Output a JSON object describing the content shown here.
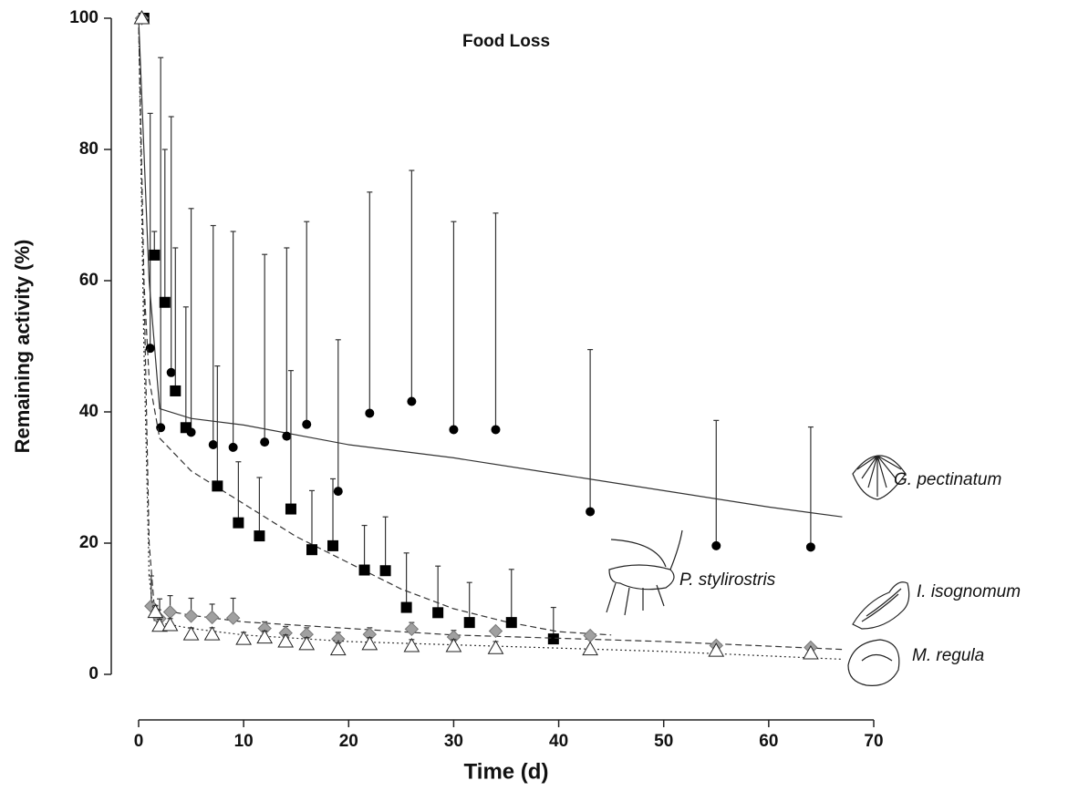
{
  "chart_data": {
    "type": "scatter",
    "title": "Food Loss",
    "xlabel": "Time (d)",
    "ylabel": "Remaining activity (%)",
    "xlim": [
      0,
      70
    ],
    "ylim": [
      0,
      100
    ],
    "xticks": [
      0,
      10,
      20,
      30,
      40,
      50,
      60,
      70
    ],
    "yticks": [
      0,
      20,
      40,
      60,
      80,
      100
    ],
    "series": [
      {
        "name": "G. pectinatum",
        "marker": "circle",
        "color": "#000000",
        "x": [
          0.3,
          1.1,
          2.1,
          3.1,
          5.0,
          7.1,
          9.0,
          12.0,
          14.1,
          16.0,
          19.0,
          22.0,
          26.0,
          30.0,
          34.0,
          43.0,
          55.0,
          64.0
        ],
        "values": [
          100,
          49.7,
          37.6,
          46.0,
          36.9,
          35.0,
          34.6,
          35.4,
          36.3,
          38.1,
          27.9,
          39.8,
          41.6,
          37.3,
          37.3,
          24.8,
          19.6,
          19.4
        ],
        "errors": [
          0,
          35.8,
          56.4,
          39,
          34.1,
          33.4,
          32.9,
          28.6,
          28.7,
          30.9,
          23.1,
          33.7,
          35.2,
          31.7,
          33,
          24.7,
          19.1,
          18.3
        ],
        "fit": {
          "style": "solid",
          "x": [
            0,
            1,
            2,
            5,
            10,
            20,
            30,
            40,
            50,
            60,
            67
          ],
          "values": [
            100,
            60,
            40.5,
            39,
            38,
            35,
            33,
            30.5,
            28,
            25.5,
            24
          ]
        }
      },
      {
        "name": "P. stylirostris",
        "marker": "square",
        "color": "#000000",
        "x": [
          0.5,
          1.5,
          2.5,
          3.5,
          4.5,
          7.5,
          9.5,
          11.5,
          14.5,
          16.5,
          18.5,
          21.5,
          23.5,
          25.5,
          28.5,
          31.5,
          35.5,
          39.5
        ],
        "values": [
          100,
          63.9,
          56.7,
          43.2,
          37.6,
          28.7,
          23.1,
          21.1,
          25.2,
          19.0,
          19.6,
          15.9,
          15.8,
          10.2,
          9.4,
          7.9,
          7.9,
          5.4
        ],
        "errors": [
          0,
          3.6,
          23.3,
          21.8,
          18.4,
          18.3,
          9.3,
          8.9,
          21.1,
          9,
          10.2,
          6.8,
          8.2,
          8.3,
          7.1,
          6.1,
          8.1,
          4.8
        ],
        "fit": {
          "style": "dashed",
          "x": [
            0,
            0.5,
            1,
            2,
            5,
            10,
            15,
            20,
            25,
            30,
            35,
            40,
            45
          ],
          "values": [
            100,
            60,
            45,
            36,
            31,
            26,
            21,
            17,
            13,
            10,
            8,
            6.5,
            6
          ]
        }
      },
      {
        "name": "I. isognomum",
        "marker": "diamond",
        "color": "#a0a0a0",
        "x": [
          0.3,
          1.2,
          2,
          3,
          5,
          7,
          9,
          12,
          14,
          16,
          19,
          22,
          26,
          30,
          34,
          43,
          55,
          64
        ],
        "values": [
          100,
          10.4,
          8.5,
          9.5,
          8.9,
          8.7,
          8.6,
          7.0,
          6.3,
          6.1,
          5.4,
          6.1,
          6.9,
          5.7,
          6.6,
          5.9,
          4.4,
          4.1
        ],
        "errors": [
          0,
          4.6,
          3,
          2.5,
          2.7,
          2,
          3,
          1,
          1,
          1,
          1,
          1,
          1,
          1,
          0.5,
          0.5,
          0.3,
          0.3
        ],
        "fit": {
          "style": "dashed",
          "x": [
            0,
            0.5,
            1,
            1.5,
            5,
            10,
            20,
            30,
            40,
            50,
            60,
            67
          ],
          "values": [
            100,
            60,
            20,
            10,
            9,
            8,
            7,
            6,
            5.5,
            5,
            4.3,
            3.8
          ]
        }
      },
      {
        "name": "M. regula",
        "marker": "triangle",
        "color": "#ffffff",
        "x": [
          0.3,
          1.6,
          2,
          3,
          5,
          7,
          10,
          12,
          14,
          16,
          19,
          22,
          26,
          30,
          34,
          43,
          55,
          64
        ],
        "values": [
          100,
          9.5,
          7.4,
          7.5,
          6.1,
          6.1,
          5.4,
          5.6,
          5.0,
          4.6,
          3.8,
          4.6,
          4.3,
          4.3,
          4.0,
          3.8,
          3.6,
          3.2
        ],
        "errors": [
          0,
          1,
          1,
          1,
          1,
          1,
          1,
          1,
          1,
          1,
          1,
          1,
          1,
          1,
          1,
          0.5,
          0.5,
          0.5
        ],
        "fit": {
          "style": "dotted",
          "x": [
            0,
            0.5,
            1,
            1.5,
            5,
            10,
            20,
            30,
            40,
            50,
            60,
            67
          ],
          "values": [
            100,
            50,
            15,
            8,
            7,
            6,
            5,
            4.5,
            4,
            3.5,
            2.8,
            2.3
          ]
        }
      }
    ]
  }
}
